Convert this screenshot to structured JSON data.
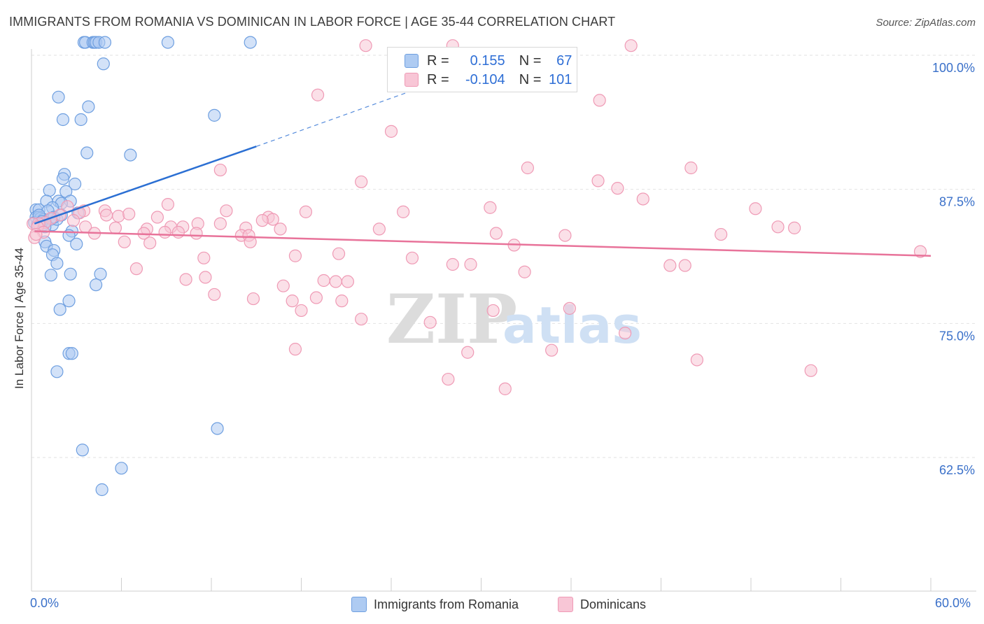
{
  "chart_data": {
    "type": "scatter",
    "title": "IMMIGRANTS FROM ROMANIA VS DOMINICAN IN LABOR FORCE | AGE 35-44 CORRELATION CHART",
    "source": "Source: ZipAtlas.com",
    "ylabel": "In Labor Force | Age 35-44",
    "xlim": [
      0,
      60
    ],
    "ylim": [
      52,
      102
    ],
    "x_tick_labels": [
      "0.0%",
      "60.0%"
    ],
    "y_ticks": [
      {
        "value": 100.0,
        "label": "100.0%"
      },
      {
        "value": 87.5,
        "label": "87.5%"
      },
      {
        "value": 75.0,
        "label": "75.0%"
      },
      {
        "value": 62.5,
        "label": "62.5%"
      }
    ],
    "gridlines": [
      100.0,
      87.5,
      75.0,
      62.5
    ],
    "watermark": {
      "zip": "ZIP",
      "atlas": "atlas"
    },
    "legend": {
      "r_label": "R =",
      "n_label": "N =",
      "rows": [
        {
          "r": "0.155",
          "n": "67"
        },
        {
          "r": "-0.104",
          "n": "101"
        }
      ]
    },
    "series": [
      {
        "name": "Immigrants from Romania",
        "color": "#6e9fe0",
        "fill": "#aecbf2",
        "trend": {
          "x0": 0.2,
          "y0": 84.3,
          "x1": 15.0,
          "y1": 91.5,
          "dash_to_x": 27.0,
          "dash_to_y": 97.5,
          "color": "#2b6fd3"
        },
        "points": [
          [
            3.5,
            101.2
          ],
          [
            3.6,
            101.2
          ],
          [
            4.1,
            101.2
          ],
          [
            4.2,
            101.2
          ],
          [
            4.3,
            101.2
          ],
          [
            4.5,
            101.2
          ],
          [
            4.9,
            101.2
          ],
          [
            9.1,
            101.2
          ],
          [
            14.6,
            101.2
          ],
          [
            4.8,
            99.2
          ],
          [
            1.8,
            96.1
          ],
          [
            3.8,
            95.2
          ],
          [
            2.1,
            94.0
          ],
          [
            3.3,
            94.0
          ],
          [
            12.2,
            94.4
          ],
          [
            3.7,
            90.9
          ],
          [
            6.6,
            90.7
          ],
          [
            2.2,
            88.9
          ],
          [
            2.1,
            88.5
          ],
          [
            2.9,
            88.0
          ],
          [
            1.2,
            87.4
          ],
          [
            2.3,
            87.3
          ],
          [
            1.0,
            86.4
          ],
          [
            1.8,
            86.4
          ],
          [
            2.6,
            86.4
          ],
          [
            2.0,
            86.2
          ],
          [
            0.3,
            85.6
          ],
          [
            0.5,
            85.6
          ],
          [
            1.4,
            85.8
          ],
          [
            1.1,
            85.5
          ],
          [
            3.1,
            85.3
          ],
          [
            0.3,
            84.9
          ],
          [
            0.5,
            84.9
          ],
          [
            0.6,
            84.8
          ],
          [
            0.8,
            84.7
          ],
          [
            1.3,
            84.7
          ],
          [
            0.2,
            84.4
          ],
          [
            0.4,
            84.2
          ],
          [
            0.8,
            84.2
          ],
          [
            1.4,
            84.2
          ],
          [
            1.7,
            84.7
          ],
          [
            2.7,
            83.6
          ],
          [
            2.5,
            83.2
          ],
          [
            0.9,
            82.6
          ],
          [
            1.0,
            82.2
          ],
          [
            3.0,
            82.4
          ],
          [
            1.5,
            81.8
          ],
          [
            1.4,
            81.4
          ],
          [
            1.7,
            80.6
          ],
          [
            4.6,
            79.6
          ],
          [
            1.3,
            79.5
          ],
          [
            2.6,
            79.6
          ],
          [
            4.3,
            78.6
          ],
          [
            2.5,
            77.1
          ],
          [
            1.9,
            76.3
          ],
          [
            2.5,
            72.2
          ],
          [
            2.7,
            72.2
          ],
          [
            1.7,
            70.5
          ],
          [
            12.4,
            65.2
          ],
          [
            3.4,
            63.2
          ],
          [
            6.0,
            61.5
          ],
          [
            4.7,
            59.5
          ],
          [
            0.5,
            85.1
          ],
          [
            0.7,
            84.5
          ],
          [
            1.5,
            84.9
          ],
          [
            2.0,
            85.1
          ],
          [
            0.9,
            84.0
          ]
        ]
      },
      {
        "name": "Dominicans",
        "color": "#ef9ab5",
        "fill": "#f8c6d6",
        "trend": {
          "x0": 0.2,
          "y0": 83.6,
          "x1": 60.0,
          "y1": 81.3,
          "color": "#e8739a"
        },
        "points": [
          [
            22.3,
            100.9
          ],
          [
            28.1,
            100.9
          ],
          [
            40.0,
            100.9
          ],
          [
            19.1,
            96.3
          ],
          [
            37.9,
            95.8
          ],
          [
            24.0,
            92.9
          ],
          [
            12.6,
            89.3
          ],
          [
            33.1,
            89.5
          ],
          [
            44.0,
            89.5
          ],
          [
            22.0,
            88.2
          ],
          [
            37.8,
            88.3
          ],
          [
            39.1,
            87.6
          ],
          [
            40.8,
            86.6
          ],
          [
            9.1,
            86.1
          ],
          [
            30.6,
            85.8
          ],
          [
            48.3,
            85.7
          ],
          [
            13.0,
            85.5
          ],
          [
            18.3,
            85.4
          ],
          [
            24.8,
            85.4
          ],
          [
            3.5,
            85.5
          ],
          [
            4.9,
            85.5
          ],
          [
            2.4,
            85.9
          ],
          [
            3.2,
            85.3
          ],
          [
            1.9,
            85.1
          ],
          [
            5.0,
            85.1
          ],
          [
            5.8,
            85.0
          ],
          [
            6.5,
            85.2
          ],
          [
            8.4,
            84.9
          ],
          [
            15.8,
            84.9
          ],
          [
            16.1,
            84.7
          ],
          [
            15.4,
            84.6
          ],
          [
            1.3,
            84.8
          ],
          [
            2.8,
            84.6
          ],
          [
            0.9,
            84.4
          ],
          [
            0.5,
            84.3
          ],
          [
            0.1,
            84.3
          ],
          [
            0.4,
            84.0
          ],
          [
            3.6,
            84.0
          ],
          [
            5.6,
            83.9
          ],
          [
            7.7,
            83.8
          ],
          [
            9.3,
            84.0
          ],
          [
            10.1,
            84.0
          ],
          [
            11.1,
            84.3
          ],
          [
            12.6,
            84.3
          ],
          [
            14.3,
            83.9
          ],
          [
            16.6,
            83.8
          ],
          [
            23.2,
            83.8
          ],
          [
            46.0,
            83.3
          ],
          [
            49.8,
            84.0
          ],
          [
            50.9,
            83.9
          ],
          [
            0.8,
            83.5
          ],
          [
            4.2,
            83.4
          ],
          [
            7.5,
            83.4
          ],
          [
            8.9,
            83.5
          ],
          [
            9.8,
            83.5
          ],
          [
            11.0,
            83.4
          ],
          [
            14.0,
            83.2
          ],
          [
            14.5,
            83.2
          ],
          [
            31.0,
            83.4
          ],
          [
            35.6,
            83.2
          ],
          [
            6.2,
            82.6
          ],
          [
            7.9,
            82.5
          ],
          [
            14.6,
            82.6
          ],
          [
            32.2,
            82.3
          ],
          [
            0.2,
            83.0
          ],
          [
            0.3,
            83.3
          ],
          [
            7.0,
            80.1
          ],
          [
            11.5,
            81.1
          ],
          [
            17.6,
            81.3
          ],
          [
            20.5,
            81.5
          ],
          [
            25.4,
            81.1
          ],
          [
            28.1,
            80.5
          ],
          [
            29.3,
            80.5
          ],
          [
            32.9,
            79.8
          ],
          [
            42.6,
            80.4
          ],
          [
            43.6,
            80.4
          ],
          [
            59.3,
            81.7
          ],
          [
            10.3,
            79.1
          ],
          [
            11.6,
            79.3
          ],
          [
            16.8,
            78.5
          ],
          [
            19.5,
            79.0
          ],
          [
            20.3,
            78.9
          ],
          [
            21.1,
            78.9
          ],
          [
            17.4,
            77.1
          ],
          [
            19.0,
            77.4
          ],
          [
            20.7,
            77.1
          ],
          [
            14.8,
            77.3
          ],
          [
            12.2,
            77.7
          ],
          [
            18.0,
            76.2
          ],
          [
            30.8,
            76.2
          ],
          [
            35.9,
            76.4
          ],
          [
            22.0,
            75.4
          ],
          [
            26.6,
            75.1
          ],
          [
            39.6,
            74.1
          ],
          [
            17.6,
            72.6
          ],
          [
            29.1,
            72.3
          ],
          [
            34.7,
            72.5
          ],
          [
            44.4,
            71.6
          ],
          [
            52.0,
            70.6
          ],
          [
            27.8,
            69.8
          ],
          [
            31.6,
            68.9
          ]
        ]
      }
    ]
  },
  "bottom_legend": [
    "Immigrants from Romania",
    "Dominicans"
  ]
}
